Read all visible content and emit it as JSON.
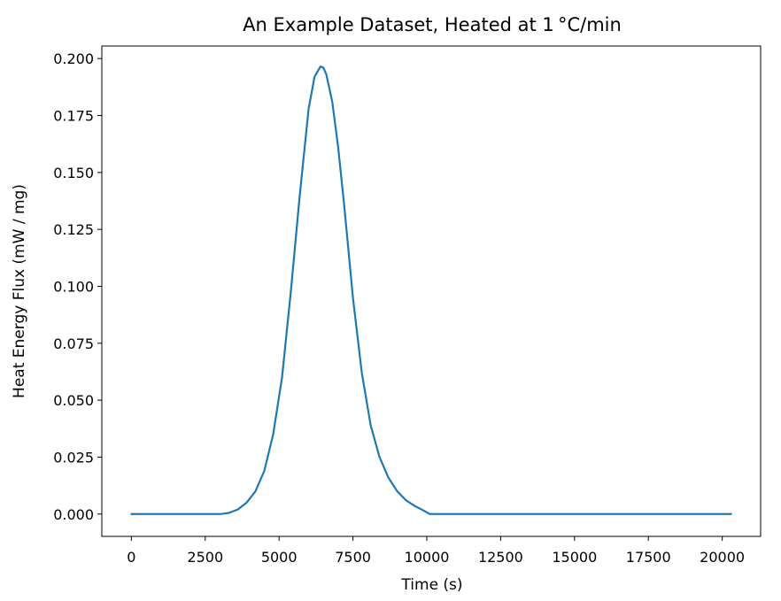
{
  "chart_data": {
    "type": "line",
    "title": "An Example Dataset, Heated at 1 °C/min",
    "xlabel": "Time (s)",
    "ylabel": "Heat Energy Flux (mW / mg)",
    "xlim": [
      -1000,
      21300
    ],
    "ylim": [
      -0.0098,
      0.2055
    ],
    "xticks": [
      0,
      2500,
      5000,
      7500,
      10000,
      12500,
      15000,
      17500,
      20000
    ],
    "xtick_labels": [
      "0",
      "2500",
      "5000",
      "7500",
      "10000",
      "12500",
      "15000",
      "17500",
      "20000"
    ],
    "yticks": [
      0.0,
      0.025,
      0.05,
      0.075,
      0.1,
      0.125,
      0.15,
      0.175,
      0.2
    ],
    "ytick_labels": [
      "0.000",
      "0.025",
      "0.050",
      "0.075",
      "0.100",
      "0.125",
      "0.150",
      "0.175",
      "0.200"
    ],
    "grid": false,
    "series": [
      {
        "color": "#1f77b4",
        "x": [
          0,
          1000,
          2000,
          3000,
          3300,
          3600,
          3900,
          4200,
          4500,
          4800,
          5100,
          5400,
          5700,
          6000,
          6200,
          6400,
          6500,
          6600,
          6800,
          7000,
          7200,
          7500,
          7800,
          8100,
          8400,
          8700,
          9000,
          9300,
          9600,
          9900,
          10100,
          10500,
          12000,
          15000,
          18000,
          20300
        ],
        "y": [
          0.0,
          0.0,
          0.0,
          0.0,
          0.0005,
          0.002,
          0.005,
          0.01,
          0.019,
          0.035,
          0.06,
          0.098,
          0.14,
          0.178,
          0.192,
          0.1965,
          0.196,
          0.193,
          0.181,
          0.161,
          0.136,
          0.095,
          0.062,
          0.039,
          0.025,
          0.016,
          0.01,
          0.006,
          0.0035,
          0.0015,
          0.0,
          0.0,
          0.0,
          0.0,
          0.0,
          0.0
        ]
      }
    ]
  }
}
